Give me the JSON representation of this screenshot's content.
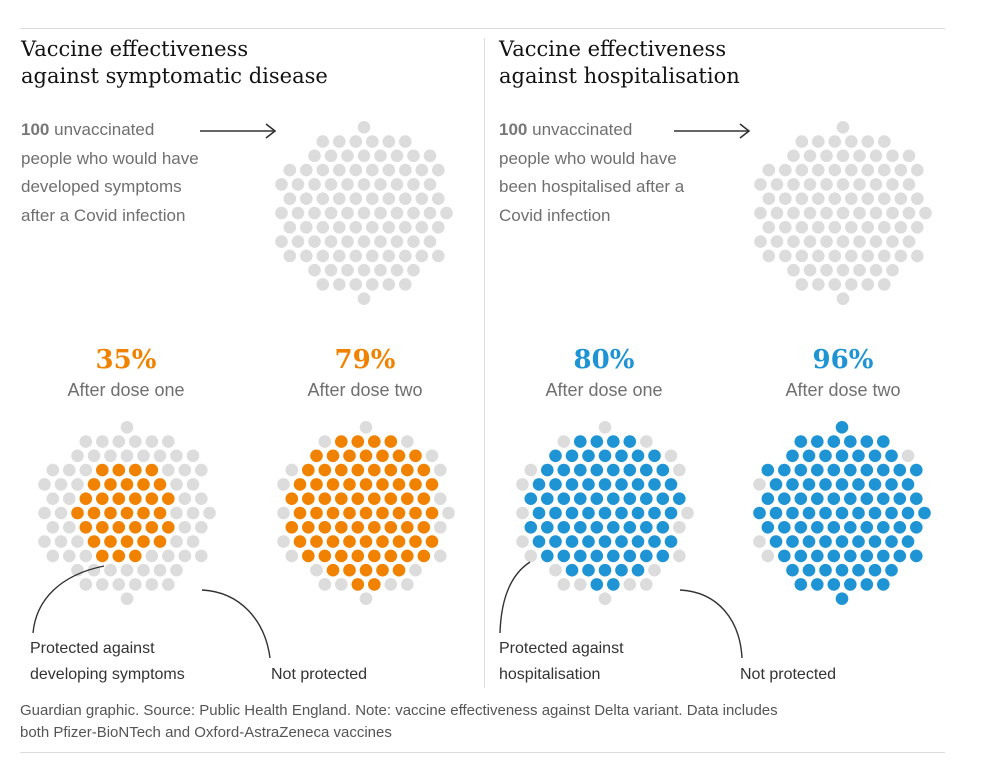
{
  "chart_data": [
    {
      "type": "dot-cluster",
      "title_lines": [
        "Vaccine effectiveness",
        "against symptomatic disease"
      ],
      "explainer": {
        "count": "100",
        "lines": [
          "unvaccinated",
          "people who would have",
          "developed symptoms",
          "after a Covid infection"
        ]
      },
      "total": 100,
      "accent": "#f08200",
      "groups": [
        {
          "percent_label": "35%",
          "label": "After dose one",
          "protected": 35
        },
        {
          "percent_label": "79%",
          "label": "After dose two",
          "protected": 79
        }
      ],
      "annotations": {
        "protected": [
          "Protected against",
          "developing symptoms"
        ],
        "not_protected": "Not protected"
      }
    },
    {
      "type": "dot-cluster",
      "title_lines": [
        "Vaccine effectiveness",
        "against hospitalisation"
      ],
      "explainer": {
        "count": "100",
        "lines": [
          "unvaccinated",
          "people who would have",
          "been hospitalised after a",
          "Covid infection"
        ]
      },
      "total": 100,
      "accent": "#1f94d4",
      "groups": [
        {
          "percent_label": "80%",
          "label": "After dose one",
          "protected": 80
        },
        {
          "percent_label": "96%",
          "label": "After dose two",
          "protected": 96
        }
      ],
      "annotations": {
        "protected": [
          "Protected against",
          "hospitalisation"
        ],
        "not_protected": "Not protected"
      }
    }
  ],
  "colors": {
    "unprotected": "#dcdcdc"
  },
  "footer": {
    "line1": "Guardian graphic. Source: Public Health England. Note: vaccine effectiveness against Delta variant. Data includes",
    "line2": "both Pfizer-BioNTech and Oxford-AstraZeneca vaccines"
  }
}
